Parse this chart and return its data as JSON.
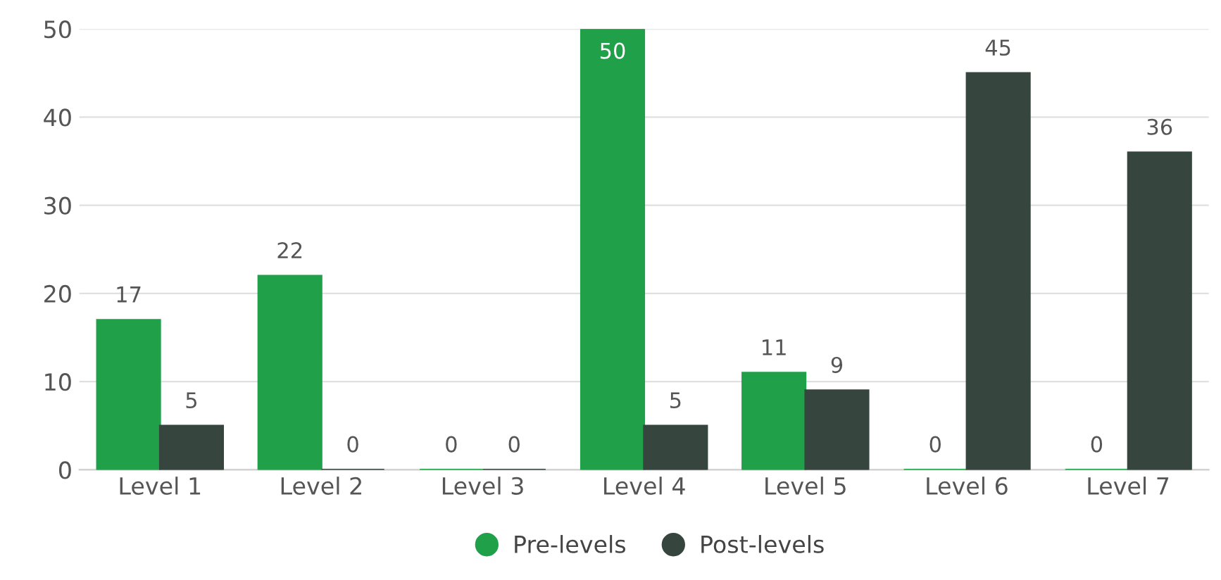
{
  "chart_data": {
    "type": "bar",
    "categories": [
      "Level 1",
      "Level 2",
      "Level 3",
      "Level 4",
      "Level 5",
      "Level 6",
      "Level 7"
    ],
    "series": [
      {
        "name": "Pre-levels",
        "color": "#21a04a",
        "values": [
          17,
          22,
          0,
          50,
          11,
          0,
          0
        ]
      },
      {
        "name": "Post-levels",
        "color": "#36463f",
        "values": [
          5,
          0,
          0,
          5,
          9,
          45,
          36
        ]
      }
    ],
    "ylim": [
      0,
      50
    ],
    "yticks": [
      0,
      10,
      20,
      30,
      40,
      50
    ],
    "grid": "y",
    "legend": "bottom",
    "data_labels": true
  }
}
